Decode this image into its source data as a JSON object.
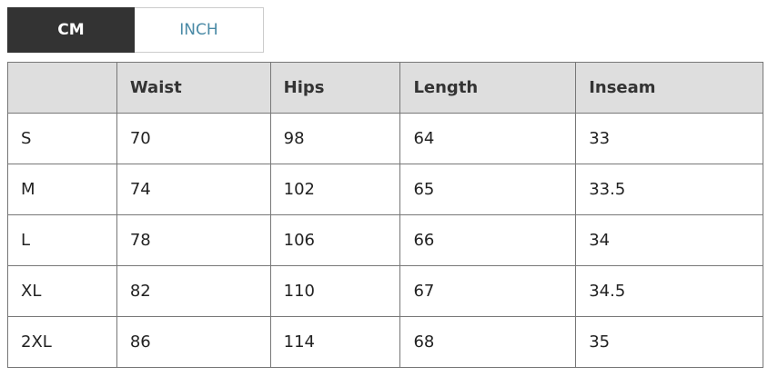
{
  "unit_tabs": [
    {
      "label": "CM",
      "active": true
    },
    {
      "label": "INCH",
      "active": false
    }
  ],
  "table": {
    "headers": [
      "",
      "Waist",
      "Hips",
      "Length",
      "Inseam"
    ],
    "rows": [
      [
        "S",
        "70",
        "98",
        "64",
        "33"
      ],
      [
        "M",
        "74",
        "102",
        "65",
        "33.5"
      ],
      [
        "L",
        "78",
        "106",
        "66",
        "34"
      ],
      [
        "XL",
        "82",
        "110",
        "67",
        "34.5"
      ],
      [
        "2XL",
        "86",
        "114",
        "68",
        "35"
      ]
    ]
  },
  "colors": {
    "active_tab": "#333333",
    "inactive_tab_text": "#4a8aa6",
    "header_bg": "#dedede"
  }
}
